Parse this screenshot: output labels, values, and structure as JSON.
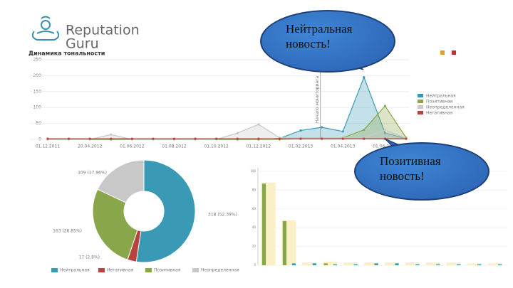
{
  "logo": {
    "line1": "Reputation",
    "line2": "Guru"
  },
  "callouts": [
    "Нейтральная новость!",
    "Позитивная новость!"
  ],
  "chart_data": [
    {
      "type": "area",
      "title": "Динамика тональности",
      "annotation": "Начало мониторинга",
      "categories": [
        "01.12.2011",
        null,
        "20.04.2012",
        null,
        "01.06.2012",
        null,
        "01.08.2012",
        null,
        "01.10.2012",
        null,
        "01.12.2012",
        null,
        "01.02.2013",
        null,
        "01.04.2013",
        null,
        "01.06.2013",
        null
      ],
      "series": [
        {
          "name": "Нейтральная",
          "color": "#3a9ab5",
          "values": [
            0,
            0,
            0,
            0,
            0,
            0,
            0,
            0,
            0,
            0,
            0,
            3,
            28,
            38,
            25,
            195,
            20,
            3
          ]
        },
        {
          "name": "Позитивная",
          "color": "#8aa64a",
          "values": [
            0,
            0,
            0,
            0,
            0,
            0,
            0,
            0,
            0,
            0,
            0,
            0,
            2,
            3,
            5,
            30,
            105,
            5
          ]
        },
        {
          "name": "Неопределенная",
          "color": "#c8c8c8",
          "values": [
            0,
            0,
            0,
            15,
            0,
            0,
            0,
            0,
            0,
            20,
            47,
            5,
            5,
            5,
            5,
            5,
            30,
            3
          ]
        },
        {
          "name": "Негативная",
          "color": "#b5443c",
          "values": [
            2,
            2,
            2,
            2,
            2,
            2,
            2,
            2,
            2,
            2,
            2,
            2,
            2,
            2,
            2,
            2,
            2,
            2
          ]
        }
      ],
      "ylim": [
        0,
        250
      ],
      "yticks": [
        0,
        50,
        100,
        150,
        200,
        250
      ],
      "grid": true,
      "legend": "right"
    },
    {
      "type": "pie",
      "hole": true,
      "categories": [
        "Нейтральная",
        "Негативная",
        "Позитивная",
        "Неопределенная"
      ],
      "values": [
        318,
        17,
        163,
        109
      ],
      "value_labels": [
        "318 (52.39%)",
        "17 (2.8%)",
        "163 (26.85%)",
        "109 (17.96%)"
      ],
      "colors": [
        "#3a9ab5",
        "#b5443c",
        "#8aa64a",
        "#c8c8c8"
      ],
      "legend": "bottom"
    },
    {
      "type": "bar",
      "categories": [
        null,
        null,
        null,
        null,
        null,
        null,
        null,
        null,
        null,
        null,
        null,
        null
      ],
      "series": [
        {
          "color": "#fbefc8",
          "values": [
            88,
            48,
            3,
            4,
            3,
            3,
            3,
            3,
            3,
            3,
            2,
            2
          ]
        },
        {
          "color": "#8aa64a",
          "values": [
            87,
            47,
            0,
            2,
            0,
            0,
            0,
            0,
            0,
            0,
            0,
            0
          ]
        },
        {
          "color": "#3a9ab5",
          "values": [
            0,
            2,
            2,
            1,
            1,
            2,
            2,
            1,
            1,
            1,
            1,
            1
          ]
        }
      ],
      "ylim": [
        0,
        100
      ],
      "yticks": [
        0,
        20,
        40,
        60,
        80,
        100
      ],
      "grid": true
    }
  ]
}
